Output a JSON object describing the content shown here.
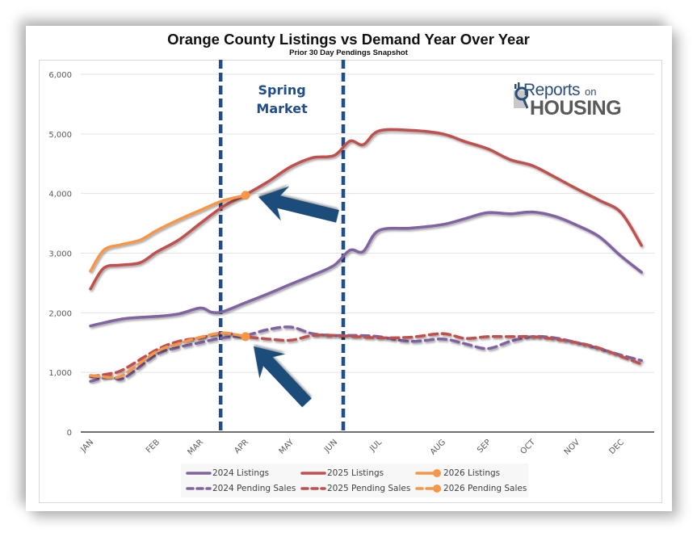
{
  "chart_data": {
    "type": "line",
    "title": "Orange County Listings vs Demand Year Over Year",
    "subtitle": "Prior 30 Day Pendings Snapshot",
    "xlabel": "",
    "ylabel": "",
    "ylim": [
      0,
      6000
    ],
    "yticks": [
      0,
      1000,
      2000,
      3000,
      4000,
      5000,
      6000
    ],
    "ytick_labels": [
      "0",
      "1,000",
      "2,000",
      "3,000",
      "4,000",
      "5,000",
      "6,000"
    ],
    "categories": [
      "JAN",
      "FEB",
      "MAR",
      "APR",
      "MAY",
      "JUN",
      "JUL",
      "AUG",
      "SEP",
      "OCT",
      "NOV",
      "DEC"
    ],
    "grid": true,
    "legend_position": "bottom",
    "x_units": "month index (JAN=0 ... DEC=11, fractional = within month)",
    "series": [
      {
        "name": "2024 Listings",
        "color": "#8064a2",
        "style": "solid",
        "markers": false,
        "x": [
          0,
          0.5,
          1,
          1.5,
          2,
          2.25,
          2.5,
          3,
          3.5,
          4,
          4.5,
          5,
          5.35,
          5.65,
          6,
          6.5,
          7,
          7.5,
          8,
          8.5,
          9,
          9.5,
          10,
          10.5,
          11,
          11.45
        ],
        "values": [
          1780,
          1900,
          1940,
          1980,
          2080,
          2010,
          2020,
          2170,
          2320,
          2480,
          2630,
          2800,
          3050,
          3030,
          3380,
          3420,
          3480,
          3580,
          3680,
          3660,
          3690,
          3620,
          3470,
          3280,
          2950,
          2680
        ]
      },
      {
        "name": "2025 Listings",
        "color": "#c0504d",
        "style": "solid",
        "markers": false,
        "x": [
          0,
          0.2,
          0.45,
          0.75,
          1,
          1.5,
          2,
          2.5,
          3,
          3.5,
          4,
          4.5,
          5,
          5.35,
          5.65,
          6,
          6.5,
          7,
          7.5,
          8,
          8.5,
          9,
          9.5,
          10,
          10.5,
          11,
          11.45
        ],
        "values": [
          2400,
          2750,
          2800,
          2840,
          3020,
          3220,
          3500,
          3780,
          3980,
          4200,
          4450,
          4600,
          4640,
          4880,
          4820,
          5050,
          5060,
          5000,
          4870,
          4750,
          4570,
          4470,
          4280,
          4080,
          3890,
          3680,
          3130
        ]
      },
      {
        "name": "2026 Listings",
        "color": "#f79646",
        "style": "solid",
        "markers": "last",
        "x": [
          0,
          0.2,
          0.45,
          0.75,
          1,
          1.5,
          2,
          2.5,
          3
        ],
        "values": [
          2700,
          3050,
          3140,
          3220,
          3380,
          3560,
          3720,
          3880,
          3970
        ]
      },
      {
        "name": "2024 Pending Sales",
        "color": "#8064a2",
        "style": "dashed",
        "markers": false,
        "x": [
          0,
          0.3,
          0.5,
          1,
          1.5,
          2,
          2.5,
          3,
          3.5,
          4,
          4.5,
          5,
          5.5,
          6,
          6.5,
          7,
          7.5,
          8,
          8.5,
          9,
          9.5,
          10,
          10.5,
          11,
          11.45
        ],
        "values": [
          850,
          930,
          900,
          1300,
          1420,
          1500,
          1580,
          1620,
          1720,
          1760,
          1650,
          1620,
          1620,
          1600,
          1520,
          1560,
          1480,
          1400,
          1520,
          1600,
          1580,
          1500,
          1400,
          1290,
          1200
        ]
      },
      {
        "name": "2025 Pending Sales",
        "color": "#c0504d",
        "style": "dashed",
        "markers": false,
        "x": [
          0,
          0.3,
          0.5,
          1,
          1.5,
          2,
          2.5,
          3,
          3.5,
          4,
          4.5,
          5,
          5.5,
          6,
          6.5,
          7,
          7.5,
          8,
          8.5,
          9,
          9.5,
          10,
          10.5,
          11,
          11.45
        ],
        "values": [
          930,
          980,
          1050,
          1380,
          1520,
          1580,
          1660,
          1600,
          1560,
          1540,
          1620,
          1620,
          1600,
          1580,
          1590,
          1650,
          1570,
          1600,
          1600,
          1600,
          1560,
          1500,
          1410,
          1270,
          1140
        ]
      },
      {
        "name": "2026 Pending Sales",
        "color": "#f79646",
        "style": "dashed",
        "markers": "last",
        "x": [
          0,
          0.3,
          0.5,
          1,
          1.5,
          2,
          2.5,
          3
        ],
        "values": [
          950,
          920,
          960,
          1350,
          1480,
          1590,
          1660,
          1600
        ]
      }
    ],
    "annotations": [
      {
        "type": "vertical-dashed-line",
        "x": 2.45,
        "color": "#1f4e8a"
      },
      {
        "type": "vertical-dashed-line",
        "x": 5.2,
        "color": "#1f4e8a"
      },
      {
        "type": "text",
        "lines": [
          "Spring",
          "Market"
        ],
        "color": "#1f4e8a"
      },
      {
        "type": "arrow",
        "points_to_series": "2026 Listings",
        "color": "#1f4e8a"
      },
      {
        "type": "arrow",
        "points_to_series": "2026 Pending Sales",
        "color": "#1f4e8a"
      }
    ]
  },
  "logo": {
    "line1": "Reports",
    "line1b": "on",
    "line2": "HOUSING"
  },
  "legend": [
    {
      "label": "2024 Listings"
    },
    {
      "label": "2025 Listings"
    },
    {
      "label": "2026 Listings"
    },
    {
      "label": "2024 Pending Sales"
    },
    {
      "label": "2025 Pending Sales"
    },
    {
      "label": "2026 Pending Sales"
    }
  ]
}
